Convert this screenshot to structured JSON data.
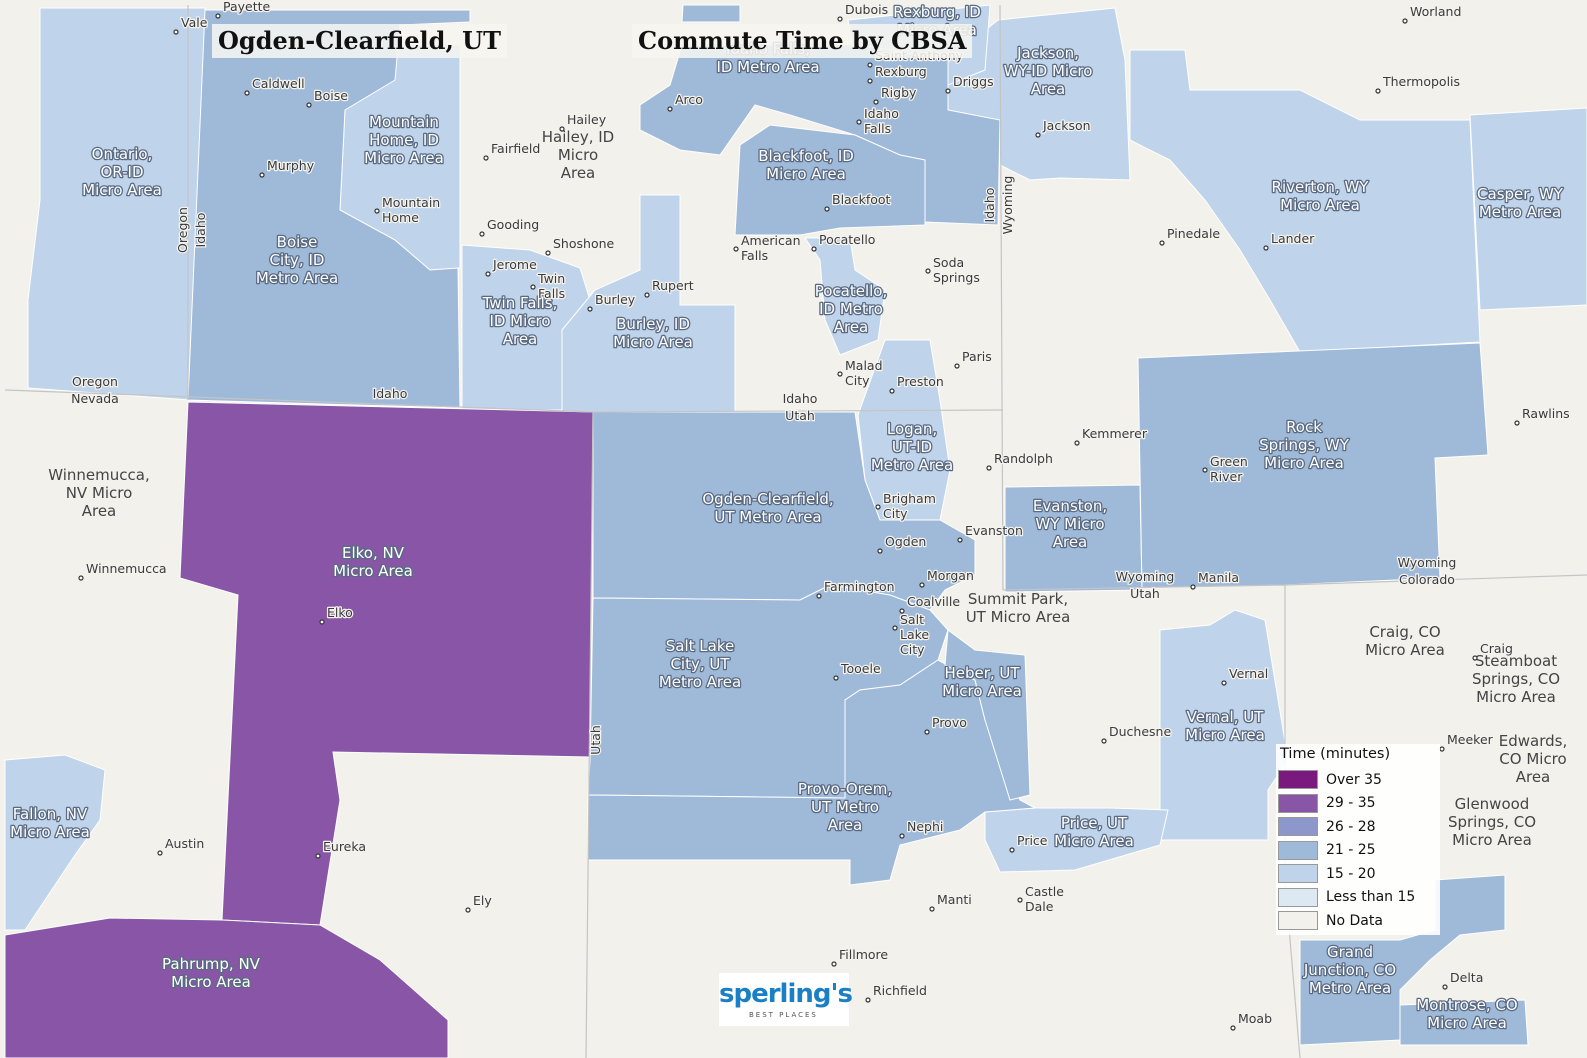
{
  "header": {
    "location_title": "Ogden-Clearfield, UT",
    "map_title": "Commute Time by CBSA"
  },
  "legend": {
    "title": "Time (minutes)",
    "items": [
      {
        "label": "Over 35",
        "color": "#7b1a7e"
      },
      {
        "label": "29 - 35",
        "color": "#8956a7"
      },
      {
        "label": "26 - 28",
        "color": "#8e97cc"
      },
      {
        "label": "21 - 25",
        "color": "#9fb9d9"
      },
      {
        "label": "15 - 20",
        "color": "#bfd3ea"
      },
      {
        "label": "Less than 15",
        "color": "#dce9f3"
      },
      {
        "label": "No Data",
        "color": "#f2f1ec"
      }
    ]
  },
  "map": {
    "background_color": "#f2f1ec",
    "regions": [
      {
        "name": "Elko, NV Micro Area",
        "class": "29 - 35"
      },
      {
        "name": "Pahrump, NV Micro Area",
        "class": "29 - 35"
      },
      {
        "name": "Ogden-Clearfield, UT Metro Area",
        "class": "21 - 25"
      },
      {
        "name": "Salt Lake City, UT Metro Area",
        "class": "21 - 25"
      },
      {
        "name": "Provo-Orem, UT Metro Area",
        "class": "21 - 25"
      },
      {
        "name": "Boise City, ID Metro Area",
        "class": "21 - 25"
      },
      {
        "name": "Idaho Falls, ID Metro Area",
        "class": "21 - 25"
      },
      {
        "name": "Blackfoot, ID Micro Area",
        "class": "21 - 25"
      },
      {
        "name": "Heber, UT Micro Area",
        "class": "21 - 25"
      },
      {
        "name": "Evanston, WY Micro Area",
        "class": "21 - 25"
      },
      {
        "name": "Rock Springs, WY Micro Area",
        "class": "21 - 25"
      },
      {
        "name": "Grand Junction, CO Metro Area",
        "class": "21 - 25"
      },
      {
        "name": "Montrose, CO Micro Area",
        "class": "21 - 25"
      },
      {
        "name": "Ontario, OR-ID Micro Area",
        "class": "15 - 20"
      },
      {
        "name": "Mountain Home, ID Micro Area",
        "class": "15 - 20"
      },
      {
        "name": "Twin Falls, ID Micro Area",
        "class": "15 - 20"
      },
      {
        "name": "Burley, ID Micro Area",
        "class": "15 - 20"
      },
      {
        "name": "Pocatello, ID Metro Area",
        "class": "15 - 20"
      },
      {
        "name": "Logan, UT-ID Metro Area",
        "class": "15 - 20"
      },
      {
        "name": "Jackson, WY-ID Micro Area",
        "class": "15 - 20"
      },
      {
        "name": "Riverton, WY Micro Area",
        "class": "15 - 20"
      },
      {
        "name": "Casper, WY Metro Area",
        "class": "15 - 20"
      },
      {
        "name": "Vernal, UT Micro Area",
        "class": "15 - 20"
      },
      {
        "name": "Price, UT Micro Area",
        "class": "15 - 20"
      },
      {
        "name": "Fallon, NV Micro Area",
        "class": "15 - 20"
      }
    ],
    "region_labels": [
      {
        "id": "elko",
        "lines": [
          "Elko, NV",
          "Micro Area"
        ]
      },
      {
        "id": "pahrump",
        "lines": [
          "Pahrump, NV",
          "Micro Area"
        ]
      },
      {
        "id": "ogden",
        "lines": [
          "Ogden-Clearfield,",
          "UT Metro Area"
        ]
      },
      {
        "id": "saltlake",
        "lines": [
          "Salt Lake",
          "City, UT",
          "Metro Area"
        ]
      },
      {
        "id": "provo",
        "lines": [
          "Provo-Orem,",
          "UT Metro",
          "Area"
        ]
      },
      {
        "id": "boise",
        "lines": [
          "Boise",
          "City, ID",
          "Metro Area"
        ]
      },
      {
        "id": "ontario",
        "lines": [
          "Ontario,",
          "OR-ID",
          "Micro Area"
        ]
      },
      {
        "id": "mtnhome",
        "lines": [
          "Mountain",
          "Home, ID",
          "Micro Area"
        ]
      },
      {
        "id": "twinfalls",
        "lines": [
          "Twin Falls,",
          "ID Micro",
          "Area"
        ]
      },
      {
        "id": "burley",
        "lines": [
          "Burley, ID",
          "Micro Area"
        ]
      },
      {
        "id": "idahofalls",
        "lines": [
          "Idaho Falls,",
          "ID Metro Area"
        ]
      },
      {
        "id": "blackfoot",
        "lines": [
          "Blackfoot, ID",
          "Micro Area"
        ]
      },
      {
        "id": "pocatello",
        "lines": [
          "Pocatello,",
          "ID Metro",
          "Area"
        ]
      },
      {
        "id": "logan",
        "lines": [
          "Logan,",
          "UT-ID",
          "Metro Area"
        ]
      },
      {
        "id": "heber",
        "lines": [
          "Heber, UT",
          "Micro Area"
        ]
      },
      {
        "id": "evanston",
        "lines": [
          "Evanston,",
          "WY Micro",
          "Area"
        ]
      },
      {
        "id": "rocksprings",
        "lines": [
          "Rock",
          "Springs, WY",
          "Micro Area"
        ]
      },
      {
        "id": "jackson",
        "lines": [
          "Jackson,",
          "WY-ID Micro",
          "Area"
        ]
      },
      {
        "id": "riverton",
        "lines": [
          "Riverton, WY",
          "Micro Area"
        ]
      },
      {
        "id": "casper",
        "lines": [
          "Casper, WY",
          "Metro Area"
        ]
      },
      {
        "id": "rexburg",
        "lines": [
          "Rexburg, ID",
          "Micro Area"
        ]
      },
      {
        "id": "vernal",
        "lines": [
          "Vernal, UT",
          "Micro Area"
        ]
      },
      {
        "id": "price",
        "lines": [
          "Price, UT",
          "Micro Area"
        ]
      },
      {
        "id": "grandjunction",
        "lines": [
          "Grand",
          "Junction, CO",
          "Metro Area"
        ]
      },
      {
        "id": "montrose",
        "lines": [
          "Montrose, CO",
          "Micro Area"
        ]
      },
      {
        "id": "fallon",
        "lines": [
          "Fallon, NV",
          "Micro Area"
        ]
      }
    ],
    "nodata_labels": [
      {
        "id": "winnemucca",
        "lines": [
          "Winnemucca,",
          "NV Micro",
          "Area"
        ]
      },
      {
        "id": "hailey",
        "lines": [
          "Hailey, ID",
          "Micro",
          "Area"
        ]
      },
      {
        "id": "summitpark",
        "lines": [
          "Summit Park,",
          "UT Micro Area"
        ]
      },
      {
        "id": "craig",
        "lines": [
          "Craig, CO",
          "Micro Area"
        ]
      },
      {
        "id": "steamboat",
        "lines": [
          "Steamboat",
          "Springs, CO",
          "Micro Area"
        ]
      },
      {
        "id": "glenwood",
        "lines": [
          "Glenwood",
          "Springs, CO",
          "Micro Area"
        ]
      },
      {
        "id": "edwards",
        "lines": [
          "Edwards,",
          "CO Micro",
          "Area"
        ]
      }
    ],
    "cities": [
      {
        "id": "vale",
        "lines": [
          "Vale"
        ]
      },
      {
        "id": "payette",
        "lines": [
          "Payette"
        ]
      },
      {
        "id": "dubois",
        "lines": [
          "Dubois"
        ]
      },
      {
        "id": "worland",
        "lines": [
          "Worland"
        ]
      },
      {
        "id": "caldwell",
        "lines": [
          "Caldwell"
        ]
      },
      {
        "id": "boise-city",
        "lines": [
          "Boise"
        ]
      },
      {
        "id": "saint-anthony",
        "lines": [
          "Saint Anthony"
        ]
      },
      {
        "id": "rexburg-city",
        "lines": [
          "Rexburg"
        ]
      },
      {
        "id": "driggs",
        "lines": [
          "Driggs"
        ]
      },
      {
        "id": "thermopolis",
        "lines": [
          "Thermopolis"
        ]
      },
      {
        "id": "arco",
        "lines": [
          "Arco"
        ]
      },
      {
        "id": "rigby",
        "lines": [
          "Rigby"
        ]
      },
      {
        "id": "hailey-city",
        "lines": [
          "Hailey"
        ]
      },
      {
        "id": "idaho-falls-city",
        "lines": [
          "Idaho",
          "Falls"
        ]
      },
      {
        "id": "jackson-city",
        "lines": [
          "Jackson"
        ]
      },
      {
        "id": "fairfield",
        "lines": [
          "Fairfield"
        ]
      },
      {
        "id": "murphy",
        "lines": [
          "Murphy"
        ]
      },
      {
        "id": "blackfoot-city",
        "lines": [
          "Blackfoot"
        ]
      },
      {
        "id": "mountain-home-city",
        "lines": [
          "Mountain",
          "Home"
        ]
      },
      {
        "id": "gooding",
        "lines": [
          "Gooding"
        ]
      },
      {
        "id": "pinedale",
        "lines": [
          "Pinedale"
        ]
      },
      {
        "id": "lander",
        "lines": [
          "Lander"
        ]
      },
      {
        "id": "american-falls",
        "lines": [
          "American",
          "Falls"
        ]
      },
      {
        "id": "pocatello-city",
        "lines": [
          "Pocatello"
        ]
      },
      {
        "id": "shoshone",
        "lines": [
          "Shoshone"
        ]
      },
      {
        "id": "soda-springs",
        "lines": [
          "Soda",
          "Springs"
        ]
      },
      {
        "id": "jerome",
        "lines": [
          "Jerome"
        ]
      },
      {
        "id": "twin-falls-city",
        "lines": [
          "Twin",
          "Falls"
        ]
      },
      {
        "id": "rupert",
        "lines": [
          "Rupert"
        ]
      },
      {
        "id": "burley-city",
        "lines": [
          "Burley"
        ]
      },
      {
        "id": "paris",
        "lines": [
          "Paris"
        ]
      },
      {
        "id": "malad-city",
        "lines": [
          "Malad",
          "City"
        ]
      },
      {
        "id": "preston",
        "lines": [
          "Preston"
        ]
      },
      {
        "id": "rawlins",
        "lines": [
          "Rawlins"
        ]
      },
      {
        "id": "kemmerer",
        "lines": [
          "Kemmerer"
        ]
      },
      {
        "id": "randolph",
        "lines": [
          "Randolph"
        ]
      },
      {
        "id": "green-river",
        "lines": [
          "Green",
          "River"
        ]
      },
      {
        "id": "brigham-city",
        "lines": [
          "Brigham",
          "City"
        ]
      },
      {
        "id": "evanston-city",
        "lines": [
          "Evanston"
        ]
      },
      {
        "id": "ogden-city",
        "lines": [
          "Ogden"
        ]
      },
      {
        "id": "winnemucca-city",
        "lines": [
          "Winnemucca"
        ]
      },
      {
        "id": "morgan",
        "lines": [
          "Morgan"
        ]
      },
      {
        "id": "manila",
        "lines": [
          "Manila"
        ]
      },
      {
        "id": "farmington",
        "lines": [
          "Farmington"
        ]
      },
      {
        "id": "coalville",
        "lines": [
          "Coalville"
        ]
      },
      {
        "id": "elko-city",
        "lines": [
          "Elko"
        ]
      },
      {
        "id": "salt-lake-city",
        "lines": [
          "Salt",
          "Lake",
          "City"
        ]
      },
      {
        "id": "craig-city",
        "lines": [
          "Craig"
        ]
      },
      {
        "id": "tooele",
        "lines": [
          "Tooele"
        ]
      },
      {
        "id": "vernal-city",
        "lines": [
          "Vernal"
        ]
      },
      {
        "id": "provo-city",
        "lines": [
          "Provo"
        ]
      },
      {
        "id": "duchesne",
        "lines": [
          "Duchesne"
        ]
      },
      {
        "id": "meeker",
        "lines": [
          "Meeker"
        ]
      },
      {
        "id": "nephi",
        "lines": [
          "Nephi"
        ]
      },
      {
        "id": "price-city",
        "lines": [
          "Price"
        ]
      },
      {
        "id": "austin",
        "lines": [
          "Austin"
        ]
      },
      {
        "id": "eureka",
        "lines": [
          "Eureka"
        ]
      },
      {
        "id": "castle-dale",
        "lines": [
          "Castle",
          "Dale"
        ]
      },
      {
        "id": "ely",
        "lines": [
          "Ely"
        ]
      },
      {
        "id": "manti",
        "lines": [
          "Manti"
        ]
      },
      {
        "id": "fillmore",
        "lines": [
          "Fillmore"
        ]
      },
      {
        "id": "delta",
        "lines": [
          "Delta"
        ]
      },
      {
        "id": "richfield",
        "lines": [
          "Richfield"
        ]
      },
      {
        "id": "moab",
        "lines": [
          "Moab"
        ]
      }
    ],
    "state_labels": [
      {
        "id": "oregon-nevada",
        "lines": [
          "Oregon",
          "Nevada"
        ]
      },
      {
        "id": "idaho-utah",
        "lines": [
          "Idaho",
          "Utah"
        ]
      },
      {
        "id": "idaho-nv",
        "lines": [
          "Idaho"
        ]
      },
      {
        "id": "wyoming-utah",
        "lines": [
          "Wyoming",
          "Utah"
        ]
      },
      {
        "id": "wyoming-colorado",
        "lines": [
          "Wyoming",
          "Colorado"
        ]
      }
    ],
    "state_labels_vertical": [
      {
        "id": "oregon-v",
        "text": "Oregon"
      },
      {
        "id": "idaho-v",
        "text": "Idaho"
      },
      {
        "id": "idaho-v2",
        "text": "Idaho"
      },
      {
        "id": "wyoming-v",
        "text": "Wyoming"
      },
      {
        "id": "utah-v",
        "text": "Utah"
      }
    ]
  },
  "logo": {
    "wordmark": "sperling's",
    "tagline": "BEST PLACES"
  }
}
